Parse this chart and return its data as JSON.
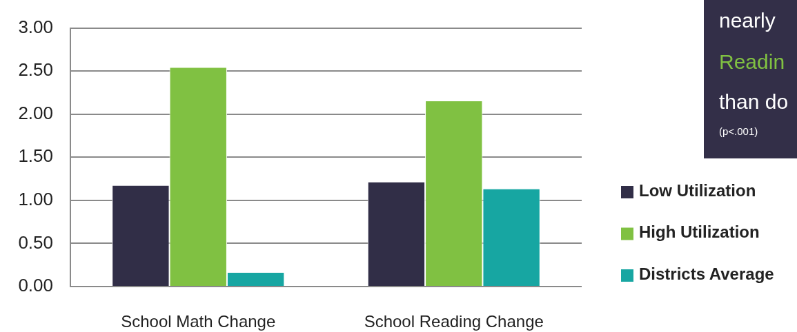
{
  "chart_data": {
    "type": "bar",
    "categories": [
      "School Math Change",
      "School Reading Change"
    ],
    "series": [
      {
        "name": "Low Utilization",
        "color": "#312e47",
        "values": [
          1.17,
          1.21
        ]
      },
      {
        "name": "High Utilization",
        "color": "#80c142",
        "values": [
          2.54,
          2.15
        ]
      },
      {
        "name": "Districts Average",
        "color": "#17a6a2",
        "values": [
          0.16,
          1.13
        ]
      }
    ],
    "ylim": [
      0,
      3
    ],
    "yticks": [
      {
        "value": 0,
        "label": "0.00"
      },
      {
        "value": 0.5,
        "label": "0.50"
      },
      {
        "value": 1,
        "label": "1.00"
      },
      {
        "value": 1.5,
        "label": "1.50"
      },
      {
        "value": 2,
        "label": "2.00"
      },
      {
        "value": 2.5,
        "label": "2.50"
      },
      {
        "value": 3,
        "label": "3.00"
      }
    ],
    "grid": "y",
    "legend": "right",
    "annotations": [
      "nearly",
      "Readin",
      "than do",
      "(p<.001)"
    ]
  }
}
